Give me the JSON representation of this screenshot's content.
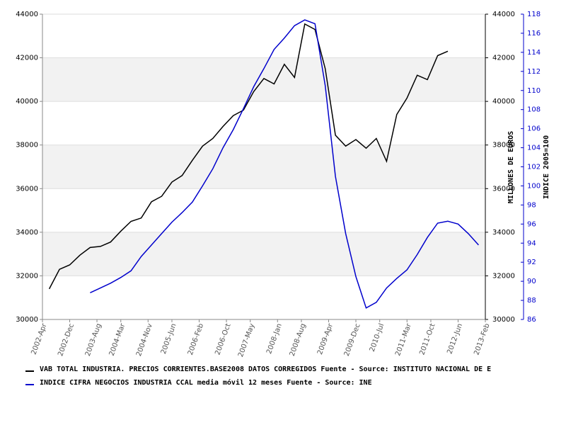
{
  "chart_data": {
    "type": "line",
    "x": [
      "2002-Jun",
      "2002-Sep",
      "2002-Dec",
      "2003-Mar",
      "2003-Jun",
      "2003-Sep",
      "2003-Dec",
      "2004-Mar",
      "2004-Jun",
      "2004-Sep",
      "2004-Dec",
      "2005-Mar",
      "2005-Jun",
      "2005-Sep",
      "2005-Dec",
      "2006-Mar",
      "2006-Jun",
      "2006-Sep",
      "2006-Dec",
      "2007-Mar",
      "2007-Jun",
      "2007-Sep",
      "2007-Dec",
      "2008-Mar",
      "2008-Jun",
      "2008-Sep",
      "2008-Dec",
      "2009-Mar",
      "2009-Jun",
      "2009-Sep",
      "2009-Dec",
      "2010-Mar",
      "2010-Jun",
      "2010-Sep",
      "2010-Dec",
      "2011-Mar",
      "2011-Jun",
      "2011-Sep",
      "2011-Dec",
      "2012-Mar",
      "2012-Jun",
      "2012-Sep",
      "2012-Dec"
    ],
    "xlim": [
      "2002-Apr",
      "2013-Feb"
    ],
    "xticks": [
      "2002-Apr",
      "2002-Dec",
      "2003-Aug",
      "2004-Mar",
      "2004-Nov",
      "2005-Jun",
      "2006-Feb",
      "2006-Oct",
      "2007-May",
      "2008-Jan",
      "2008-Aug",
      "2009-Apr",
      "2009-Dec",
      "2010-Jul",
      "2011-Mar",
      "2011-Oct",
      "2012-Jun",
      "2013-Feb"
    ],
    "ylim": [
      30000,
      44000
    ],
    "yticks": [
      30000,
      32000,
      34000,
      36000,
      38000,
      40000,
      42000,
      44000
    ],
    "y2lim": [
      86,
      118
    ],
    "y2ticks": [
      86,
      88,
      90,
      92,
      94,
      96,
      98,
      100,
      102,
      104,
      106,
      108,
      110,
      112,
      114,
      116,
      118
    ],
    "ylabel": "MILLONES DE EUROS",
    "y2label": "INDICE 2005=100",
    "grid": true,
    "series": [
      {
        "name": "VAB TOTAL INDUSTRIA. PRECIOS CORRIENTES.BASE2008 DATOS CORREGIDOS  Fuente - Source: INSTITUTO NACIONAL DE E",
        "color": "#000000",
        "values": [
          31400,
          32300,
          32500,
          32950,
          33300,
          33350,
          33550,
          34050,
          34500,
          34650,
          35400,
          35650,
          36300,
          36600,
          37300,
          37950,
          38300,
          38850,
          39350,
          39600,
          40450,
          41050,
          40800,
          41700,
          41100,
          43550,
          43300,
          41500,
          38450,
          37950,
          38250,
          37850,
          38300,
          37250,
          39400,
          40150,
          41200,
          41000,
          42100,
          42300,
          null,
          null,
          null
        ]
      },
      {
        "name": "INDICE CIFRA NEGOCIOS INDUSTRIA CCAL media móvil 12 meses  Fuente - Source: INE",
        "color": "#0000cc",
        "axis": "y2",
        "values": [
          null,
          null,
          null,
          null,
          88.8,
          89.3,
          89.8,
          90.4,
          91.1,
          92.6,
          93.8,
          95.0,
          96.2,
          97.2,
          98.3,
          100.0,
          101.8,
          104.0,
          105.9,
          108.1,
          110.4,
          112.3,
          114.3,
          115.5,
          116.8,
          117.4,
          117.0,
          110.5,
          101.0,
          95.0,
          90.5,
          87.2,
          87.8,
          89.3,
          90.3,
          91.2,
          92.8,
          94.6,
          96.1,
          96.3,
          96.0,
          95.0,
          93.8
        ]
      }
    ]
  }
}
